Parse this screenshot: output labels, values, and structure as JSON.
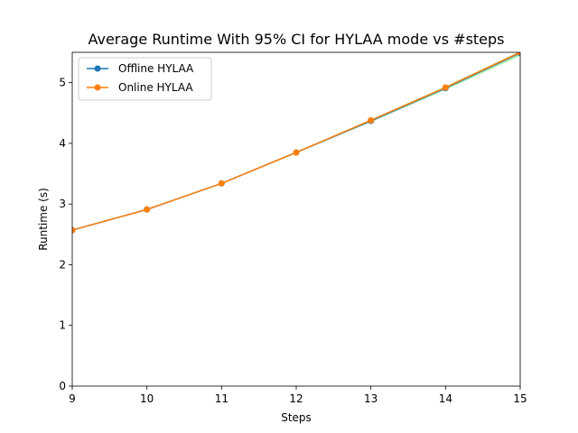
{
  "chart_data": {
    "type": "line",
    "title": "Average Runtime With 95% CI for HYLAA mode vs #steps",
    "xlabel": "Steps",
    "ylabel": "Runtime (s)",
    "xlim": [
      9,
      15
    ],
    "ylim": [
      0,
      5.5
    ],
    "xticks": [
      "9",
      "10",
      "11",
      "12",
      "13",
      "14",
      "15"
    ],
    "yticks": [
      "0",
      "1",
      "2",
      "3",
      "4",
      "5"
    ],
    "x": [
      9,
      10,
      11,
      12,
      13,
      14,
      15
    ],
    "grid": false,
    "legend_position": "upper-left",
    "series": [
      {
        "name": "Offline HYLAA",
        "color": "#1f77b4",
        "marker": "circle",
        "values": [
          2.57,
          2.91,
          3.34,
          3.85,
          4.37,
          4.91,
          5.49
        ]
      },
      {
        "name": "Online HYLAA",
        "color": "#ff7f0e",
        "marker": "circle",
        "values": [
          2.57,
          2.91,
          3.34,
          3.85,
          4.38,
          4.92,
          5.5
        ]
      }
    ],
    "confidence_band": {
      "color": "#90ee90",
      "lower": [
        2.56,
        2.9,
        3.33,
        3.84,
        4.35,
        4.88,
        5.44
      ],
      "upper": [
        2.58,
        2.92,
        3.35,
        3.86,
        4.39,
        4.94,
        5.52
      ]
    }
  }
}
